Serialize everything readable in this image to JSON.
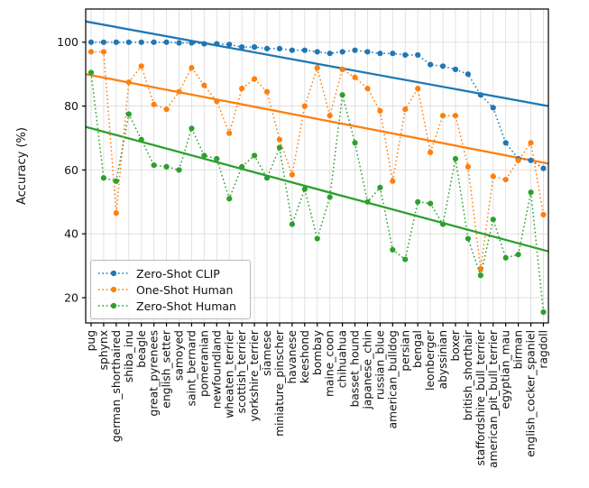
{
  "chart_data": {
    "type": "line",
    "title": "",
    "xlabel": "",
    "ylabel": "Accuracy (%)",
    "ylim": [
      12.1,
      110.4
    ],
    "yticks": [
      20,
      40,
      60,
      80,
      100
    ],
    "grid": "both",
    "legend_position": "lower-left",
    "marker": "circle",
    "line_style": "dotted",
    "categories": [
      "pug",
      "sphynx",
      "german_shorthaired",
      "shiba_inu",
      "beagle",
      "great_pyrenees",
      "english_setter",
      "samoyed",
      "saint_bernard",
      "pomeranian",
      "newfoundland",
      "wheaten_terrier",
      "scottish_terrier",
      "yorkshire_terrier",
      "siamese",
      "miniature_pinscher",
      "havanese",
      "keeshond",
      "bombay",
      "maine_coon",
      "chihuahua",
      "basset_hound",
      "japanese_chin",
      "russian_blue",
      "american_bulldog",
      "persian",
      "bengal",
      "leonberger",
      "abyssinian",
      "boxer",
      "british_shorthair",
      "staffordshire_bull_terrier",
      "american_pit_bull_terrier",
      "egyptian_mau",
      "birman",
      "english_cocker_spaniel",
      "ragdoll"
    ],
    "series": [
      {
        "name": "Zero-Shot CLIP",
        "color": "#1f77b4",
        "values": [
          100,
          100,
          100,
          100,
          100,
          100,
          100,
          99.8,
          99.8,
          99.5,
          99.5,
          99.3,
          98.5,
          98.5,
          98,
          98,
          97.5,
          97.5,
          97,
          96.5,
          97,
          97.5,
          97,
          96.5,
          96.5,
          96,
          96,
          93,
          92.5,
          91.5,
          90,
          83.5,
          79.5,
          68.5,
          63.5,
          63,
          60.5
        ]
      },
      {
        "name": "One-Shot Human",
        "color": "#ff7f0e",
        "values": [
          97,
          97,
          46.5,
          87.5,
          92.5,
          80.5,
          79,
          84.5,
          92,
          86.5,
          81.5,
          71.5,
          85.5,
          88.5,
          84.5,
          69.5,
          58.5,
          80,
          92,
          77,
          91.5,
          89,
          85.5,
          78.5,
          56.5,
          79,
          85.5,
          65.5,
          77,
          77,
          61,
          29,
          58,
          57,
          63,
          68.5,
          46
        ]
      },
      {
        "name": "Zero-Shot Human",
        "color": "#2ca02c",
        "values": [
          90.5,
          57.5,
          56.5,
          77.5,
          69.5,
          61.5,
          61,
          60,
          73,
          64.5,
          63.5,
          51,
          61,
          64.5,
          57.5,
          67,
          43,
          54,
          38.5,
          51.5,
          83.5,
          68.5,
          50,
          54.5,
          35,
          32,
          50,
          49.5,
          43,
          63.5,
          38.5,
          27,
          44.5,
          32.5,
          33.5,
          53,
          15.5
        ]
      }
    ],
    "trend_lines": [
      {
        "series": "Zero-Shot CLIP",
        "color": "#1f77b4",
        "left_value": 106.5,
        "right_value": 80
      },
      {
        "series": "One-Shot Human",
        "color": "#ff7f0e",
        "left_value": 90,
        "right_value": 62
      },
      {
        "series": "Zero-Shot Human",
        "color": "#2ca02c",
        "left_value": 73.5,
        "right_value": 34.5
      }
    ]
  }
}
